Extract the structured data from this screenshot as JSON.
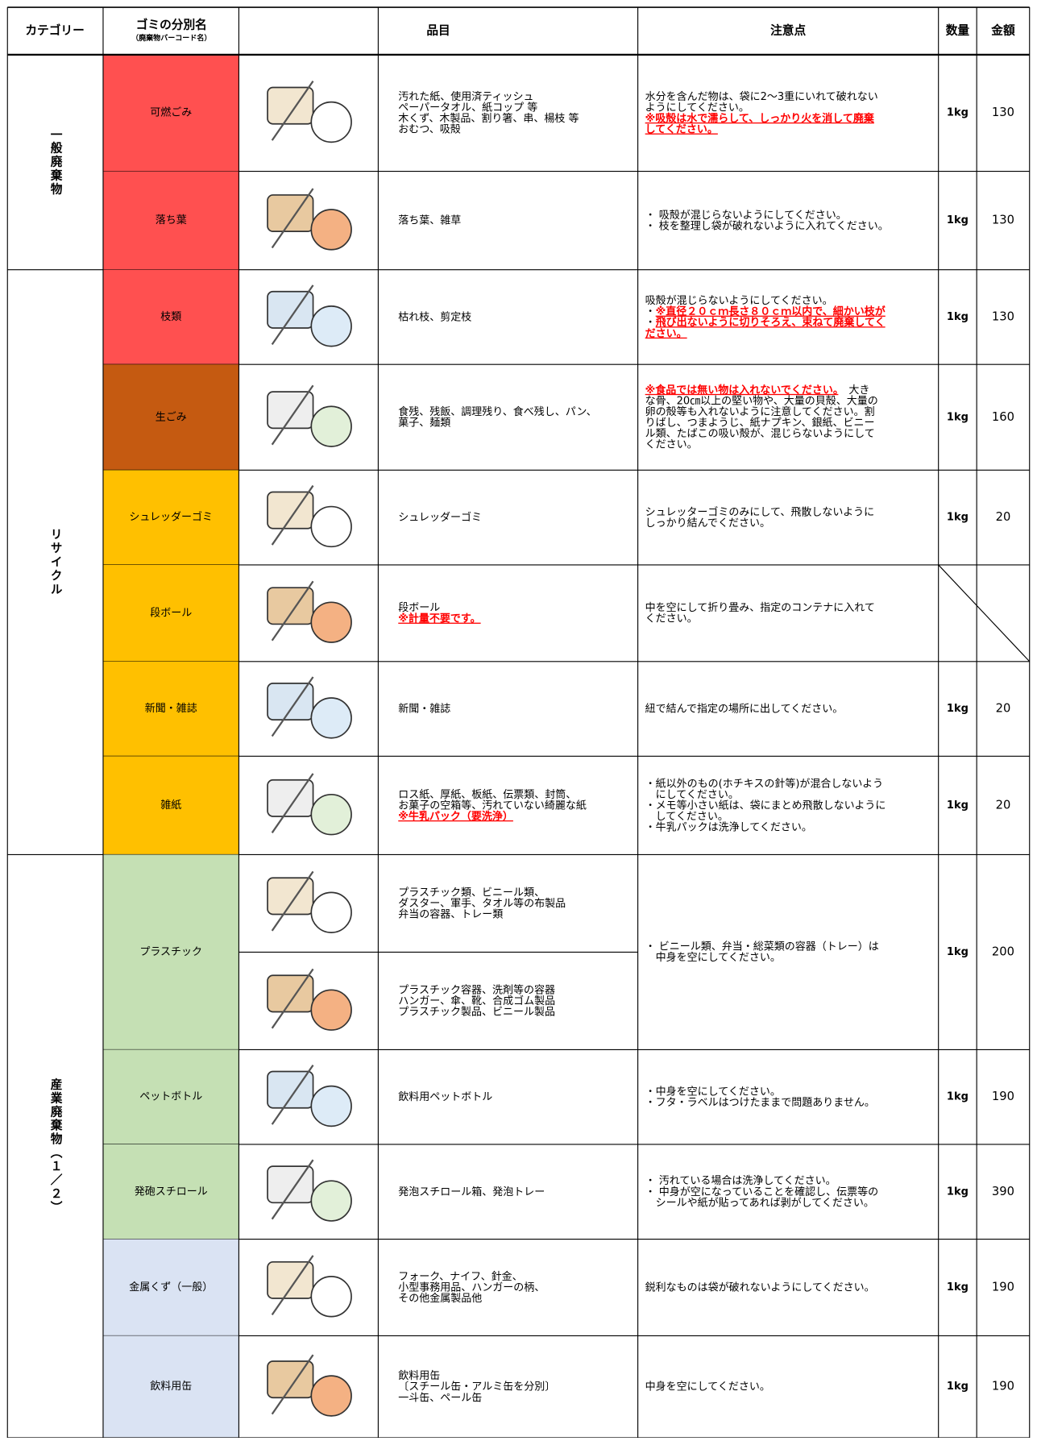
{
  "header": {
    "category": "カテゴリー",
    "name": "ゴミの分別名",
    "name_sub": "（廃棄物バーコード名）",
    "items": "品目",
    "notes": "注意点",
    "quantity": "数量",
    "price": "金額"
  },
  "categories": [
    {
      "label": "一般廃棄物",
      "rows": [
        {
          "name": "可燃ごみ",
          "color": "#ff5050",
          "items": [
            [
              "汚れた紙、使用済ティッシュ",
              "ペーパータオル、紙コップ 等",
              "木くず、木製品、割り箸、串、楊枝 等",
              "おむつ、吸殻"
            ]
          ],
          "notes": [
            "水分を含んだ物は、袋に2～3重にいれて破れない",
            "ようにしてください。",
            {
              "text": "※吸殻は水で濡らして、しっかり火を消して廃棄",
              "warning": true
            },
            {
              "text": "してください。",
              "warning": true
            }
          ],
          "quantity": "1kg",
          "price": 130
        },
        {
          "name": "落ち葉",
          "color": "#ff5050",
          "items": [
            [
              "落ち葉、雑草"
            ]
          ],
          "notes": [
            "・ 吸殻が混じらないようにしてください。",
            "・ 枝を整理し袋が破れないように入れてください。"
          ],
          "quantity": "1kg",
          "price": 130
        }
      ]
    },
    {
      "label": "リサイクル",
      "rows": [
        {
          "name": "枝類",
          "color": "#ff5050",
          "items": [
            [
              "枯れ枝、剪定枝"
            ]
          ],
          "notes": [
            "吸殻が混じらないようにしてください。",
            [
              "・",
              {
                "text": "※直径２０ｃｍ長さ８０ｃｍ以内で、細かい枝が",
                "warning": true
              }
            ],
            [
              "・",
              {
                "text": "飛び出ないように切りそろえ、束ねて廃棄してく",
                "warning": true
              }
            ],
            {
              "text": "ださい。",
              "warning": true
            }
          ],
          "quantity": "1kg",
          "price": 130
        },
        {
          "name": "生ごみ",
          "color": "#c55a11",
          "items": [
            [
              "食残、残飯、調理残り、食べ残し、パン、",
              "菓子、麺類"
            ]
          ],
          "notes": [
            [
              {
                "text": "※食品では無い物は入れないでください。",
                "warning": true
              },
              "　大き"
            ],
            "な骨、20㎝以上の堅い物や、大量の貝殻、大量の",
            "卵の殻等も入れないように注意してください。割",
            "りばし、つまようじ、紙ナプキン、銀紙、ビニー",
            "ル類、たばこの吸い殻が、混じらないようにして",
            "ください。"
          ],
          "quantity": "1kg",
          "price": 160
        },
        {
          "name": "シュレッダーゴミ",
          "color": "#ffc000",
          "items": [
            [
              "シュレッダーゴミ"
            ]
          ],
          "notes": [
            "シュレッターゴミのみにして、飛散しないように",
            "しっかり結んでください。"
          ],
          "quantity": "1kg",
          "price": 20
        },
        {
          "name": "段ボール",
          "color": "#ffc000",
          "items": [
            [
              "段ボール",
              {
                "text": "※計量不要です。",
                "warning": true
              }
            ]
          ],
          "notes": [
            "中を空にして折り畳み、指定のコンテナに入れて",
            "ください。"
          ]
        },
        {
          "name": "新聞・雑誌",
          "color": "#ffc000",
          "items": [
            [
              "新聞・雑誌"
            ]
          ],
          "notes": [
            "紐で結んで指定の場所に出してください。"
          ],
          "quantity": "1kg",
          "price": 20
        },
        {
          "name": "雑紙",
          "color": "#ffc000",
          "items": [
            [
              "ロス紙、厚紙、板紙、伝票類、封筒、",
              "お菓子の空箱等、汚れていない綺麗な紙",
              {
                "text": "※牛乳パック（要洗浄）",
                "warning": true
              }
            ]
          ],
          "notes": [
            "・紙以外のもの(ホチキスの針等)が混合しないよう",
            "　にしてください。",
            "・メモ等小さい紙は、袋にまとめ飛散しないように",
            "　してください。",
            "・牛乳パックは洗浄してください。"
          ],
          "quantity": "1kg",
          "price": 20
        }
      ]
    },
    {
      "label": "産業廃棄物（１／２）",
      "rows": [
        {
          "name": "プラスチック",
          "color": "#c5e0b4",
          "items": [
            [
              "プラスチック類、ビニール類、",
              "ダスター、軍手、タオル等の布製品",
              "弁当の容器、トレー類"
            ],
            [
              "プラスチック容器、洗剤等の容器",
              "ハンガー、傘、靴、合成ゴム製品",
              "プラスチック製品、ビニール製品"
            ]
          ],
          "notes": [
            "・ ビニール類、弁当・総菜類の容器（トレー）は",
            "　中身を空にしてください。"
          ],
          "quantity": "1kg",
          "price": 200
        },
        {
          "name": "ペットボトル",
          "color": "#c5e0b4",
          "items": [
            [
              "飲料用ペットボトル"
            ]
          ],
          "notes": [
            "・中身を空にしてください。",
            "・フタ・ラベルはつけたままで問題ありません。"
          ],
          "quantity": "1kg",
          "price": 190
        },
        {
          "name": "発砲スチロール",
          "color": "#c5e0b4",
          "items": [
            [
              "発泡スチロール箱、発泡トレー"
            ]
          ],
          "notes": [
            "・ 汚れている場合は洗浄してください。",
            "・ 中身が空になっていることを確認し、伝票等の",
            "　シールや紙が貼ってあれば剥がしてください。"
          ],
          "quantity": "1kg",
          "price": 390
        },
        {
          "name": "金属くず（一般）",
          "color": "#dae3f3",
          "items": [
            [
              "フォーク、ナイフ、針金、",
              "小型事務用品、ハンガーの柄、",
              "その他金属製品他"
            ]
          ],
          "notes": [
            "鋭利なものは袋が破れないようにしてください。"
          ],
          "quantity": "1kg",
          "price": 190
        },
        {
          "name": "飲料用缶",
          "color": "#dae3f3",
          "items": [
            [
              "飲料用缶",
              "〔スチール缶・アルミ缶を分別〕",
              "一斗缶、ペール缶"
            ]
          ],
          "notes": [
            "中身を空にしてください。"
          ],
          "quantity": "1kg",
          "price": 190
        }
      ]
    }
  ]
}
